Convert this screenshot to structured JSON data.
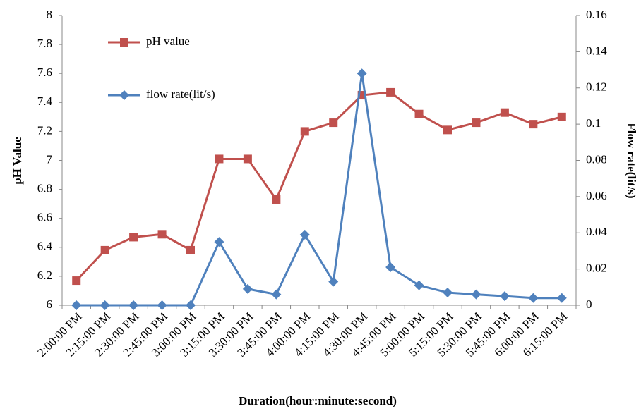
{
  "chart_data": {
    "type": "line",
    "x_label": "Duration(hour:minute:second)",
    "y_label": "pH  Value",
    "y2_label": "Flow  rate(lit/s)",
    "categories": [
      "2:00:00 PM",
      "2:15:00 PM",
      "2:30:00 PM",
      "2:45:00 PM",
      "3:00:00 PM",
      "3:15:00 PM",
      "3:30:00 PM",
      "3:45:00 PM",
      "4:00:00 PM",
      "4:15:00 PM",
      "4:30:00 PM",
      "4:45:00 PM",
      "5:00:00 PM",
      "5:15:00 PM",
      "5:30:00 PM",
      "5:45:00 PM",
      "6:00:00 PM",
      "6:15:00 PM"
    ],
    "series": [
      {
        "name": "pH value",
        "color": "#c0504d",
        "marker": "square",
        "values": [
          6.17,
          6.38,
          6.47,
          6.49,
          6.38,
          7.01,
          7.01,
          6.73,
          7.2,
          7.26,
          7.45,
          7.47,
          7.32,
          7.21,
          7.26,
          7.33,
          7.25,
          7.3
        ]
      },
      {
        "name": "flow rate(lit/s)",
        "color": "#4f81bd",
        "marker": "diamond",
        "axis": "y2",
        "values": [
          0,
          0,
          0,
          0,
          0,
          0.035,
          0.009,
          0.006,
          0.039,
          0.013,
          0.128,
          0.021,
          0.011,
          0.007,
          0.006,
          0.005,
          0.004,
          0.004
        ]
      }
    ],
    "ylim": [
      6,
      8
    ],
    "yticks": [
      6,
      6.2,
      6.4,
      6.6,
      6.8,
      7,
      7.2,
      7.4,
      7.6,
      7.8,
      8
    ],
    "y2lim": [
      0,
      0.16
    ],
    "y2ticks": [
      0,
      0.02,
      0.04,
      0.06,
      0.08,
      0.1,
      0.12,
      0.14,
      0.16
    ],
    "legend": "upper left",
    "grid": false
  }
}
